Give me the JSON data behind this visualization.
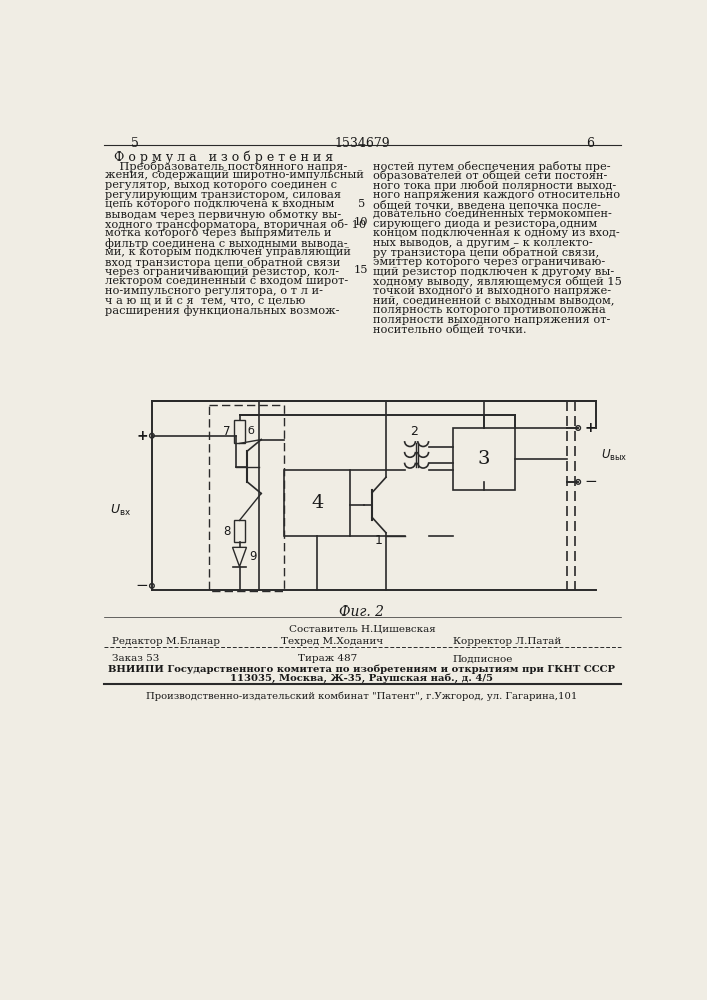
{
  "bg_color": "#f0ede4",
  "page_number_left": "5",
  "page_number_center": "1534679",
  "page_number_right": "6",
  "section_title": "Ф о р м у л а   и з о б р е т е н и я",
  "left_col_lines": [
    "    Преобразователь постоянного напря-",
    "жения, содержащий широтно-импульсный",
    "регулятор, выход которого соединен с",
    "регулирующим транзистором, силовая",
    "цепь которого подключена к входным",
    "выводам через первичную обмотку вы-",
    "ходного трансформатора, вторичная об- 10",
    "мотка которого через выпрямитель и",
    "фильтр соединена с выходными вывода-",
    "ми, к которым подключен управляющий",
    "вход транзистора цепи обратной связи",
    "через ограничивающий резистор, кол-",
    "лектором соединенный с входом широт-",
    "но-импульсного регулятора, о т л и-",
    "ч а ю щ и й с я  тем, что, с целью",
    "расширения функциональных возмож-"
  ],
  "right_col_lines": [
    "ностей путем обеспечения работы пре-",
    "образователей от общей сети постоян-",
    "ного тока при любой полярности выход-",
    "ного напряжения каждого относительно",
    "общей точки, введена цепочка после-",
    "довательно соединенных термокомпен-",
    "сирующего диода и резистора,одним",
    "концом подключенная к одному из вход-",
    "ных выводов, а другим – к коллекто-",
    "ру транзистора цепи обратной связи,",
    "эмиттер которого через ограничиваю-",
    "щий резистор подключен к другому вы-",
    "ходному выводу, являющемуся общей 15",
    "точкой входного и выходного напряже-",
    "ний, соединенной с выходным выводом,",
    "полярность которого противоположна",
    "полярности выходного напряжения от-",
    "носительно общей точки."
  ],
  "fig_label": "Фиг. 2",
  "footer_composer": "Составитель Н.Цишевская",
  "footer_editor": "Редактор М.Бланар",
  "footer_techred": "Техред М.Ходанич",
  "footer_corrector": "Корректор Л.Патай",
  "footer_order": "Заказ 53",
  "footer_tirazh": "Тираж 487",
  "footer_podpisnoe": "Подписное",
  "footer_vniip": "ВНИИПИ Государственного комитета по изобретениям и открытиям при ГКНТ СССР",
  "footer_address": "113035, Москва, Ж-35, Раушская наб., д. 4/5",
  "footer_proizv": "Производственно-издательский комбинат \"Патент\", г.Ужгород, ул. Гагарина,101",
  "text_color": "#1a1a1a",
  "line_color": "#2a2a2a"
}
